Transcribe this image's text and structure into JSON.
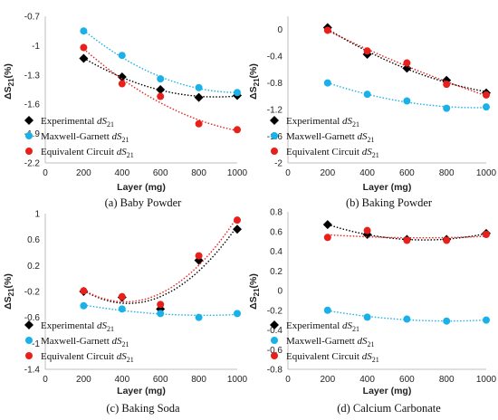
{
  "colors": {
    "experimental": "#000000",
    "maxwell_garnett": "#1ab0e8",
    "equivalent_circuit": "#e8201c",
    "axis": "#bfbfbf"
  },
  "chart_data": [
    {
      "type": "scatter",
      "caption": "(a) Baby Powder",
      "xlabel": "Layer (mg)",
      "ylabel_main": "ΔS",
      "ylabel_sub": "21",
      "ylabel_unit": "(%)",
      "xlim": [
        0,
        1000
      ],
      "ylim": [
        -2.2,
        -0.7
      ],
      "xticks": [
        "0",
        "200",
        "400",
        "600",
        "800",
        "1000"
      ],
      "yticks": [
        "-0.7",
        "-1",
        "-1.3",
        "-1.6",
        "-1.9",
        "-2.2"
      ],
      "ytick_values": [
        -0.7,
        -1,
        -1.3,
        -1.6,
        -1.9,
        -2.2
      ],
      "trendlines": "dotted",
      "legend_position": "bottom-left",
      "x": [
        200,
        400,
        600,
        800,
        1000
      ],
      "series": [
        {
          "name": "Experimental",
          "name_italic": "dS",
          "name_sub": "21",
          "marker": "diamond",
          "values": [
            -1.13,
            -1.32,
            -1.45,
            -1.53,
            -1.51
          ]
        },
        {
          "name": "Maxwell-Garnett",
          "name_italic": "dS",
          "name_sub": "21",
          "marker": "circle",
          "values": [
            -0.85,
            -1.1,
            -1.34,
            -1.43,
            -1.48
          ]
        },
        {
          "name": "Equivalent Circuit",
          "name_italic": "dS",
          "name_sub": "21",
          "marker": "circle",
          "values": [
            -1.02,
            -1.39,
            -1.52,
            -1.8,
            -1.86
          ]
        }
      ]
    },
    {
      "type": "scatter",
      "caption": "(b) Baking Powder",
      "xlabel": "Layer (mg)",
      "ylabel_main": "ΔS",
      "ylabel_sub": "21",
      "ylabel_unit": "(%)",
      "xlim": [
        0,
        1000
      ],
      "ylim": [
        -2,
        0.2
      ],
      "xticks": [
        "0",
        "200",
        "400",
        "600",
        "800",
        "1000"
      ],
      "yticks": [
        "0",
        "-0.4",
        "-0.8",
        "-1.2",
        "-1.6",
        "-2"
      ],
      "ytick_values": [
        0,
        -0.4,
        -0.8,
        -1.2,
        -1.6,
        -2
      ],
      "trendlines": "dotted",
      "legend_position": "bottom-left",
      "x": [
        200,
        400,
        600,
        800,
        1000
      ],
      "series": [
        {
          "name": "Experimental",
          "name_italic": "dS",
          "name_sub": "21",
          "marker": "diamond",
          "values": [
            0.03,
            -0.37,
            -0.58,
            -0.76,
            -0.95
          ]
        },
        {
          "name": "Maxwell-Garnett",
          "name_italic": "dS",
          "name_sub": "21",
          "marker": "circle",
          "values": [
            -0.8,
            -0.97,
            -1.07,
            -1.18,
            -1.16
          ]
        },
        {
          "name": "Equivalent Circuit",
          "name_italic": "dS",
          "name_sub": "21",
          "marker": "circle",
          "values": [
            -0.01,
            -0.32,
            -0.5,
            -0.82,
            -0.98
          ]
        }
      ]
    },
    {
      "type": "scatter",
      "caption": "(c) Baking Soda",
      "xlabel": "Layer (mg)",
      "ylabel_main": "ΔS",
      "ylabel_sub": "21",
      "ylabel_unit": "(%)",
      "xlim": [
        0,
        1000
      ],
      "ylim": [
        -1.4,
        1
      ],
      "xticks": [
        "0",
        "200",
        "400",
        "600",
        "800",
        "1000"
      ],
      "yticks": [
        "1",
        "0.6",
        "0.2",
        "-0.2",
        "-0.6",
        "-1",
        "-1.4"
      ],
      "ytick_values": [
        1,
        0.6,
        0.2,
        -0.2,
        -0.6,
        -1,
        -1.4
      ],
      "trendlines": "dotted",
      "legend_position": "bottom-left",
      "x": [
        200,
        400,
        600,
        800,
        1000
      ],
      "series": [
        {
          "name": "Experimental",
          "name_italic": "dS",
          "name_sub": "21",
          "marker": "diamond",
          "values": [
            -0.2,
            -0.29,
            -0.47,
            0.28,
            0.76
          ]
        },
        {
          "name": "Maxwell-Garnett",
          "name_italic": "dS",
          "name_sub": "21",
          "marker": "circle",
          "values": [
            -0.42,
            -0.47,
            -0.54,
            -0.6,
            -0.54
          ]
        },
        {
          "name": "Equivalent Circuit",
          "name_italic": "dS",
          "name_sub": "21",
          "marker": "circle",
          "values": [
            -0.19,
            -0.28,
            -0.4,
            0.35,
            0.9
          ]
        }
      ]
    },
    {
      "type": "scatter",
      "caption": "(d) Calcium Carbonate",
      "xlabel": "Layer (mg)",
      "ylabel_main": "ΔS",
      "ylabel_sub": "21",
      "ylabel_unit": "(%)",
      "xlim": [
        0,
        1000
      ],
      "ylim": [
        -0.8,
        0.8
      ],
      "xticks": [
        "0",
        "200",
        "400",
        "600",
        "800",
        "1000"
      ],
      "yticks": [
        "0.8",
        "0.6",
        "0.4",
        "0.2",
        "0",
        "-0.2",
        "-0.4",
        "-0.6",
        "-0.8"
      ],
      "ytick_values": [
        0.8,
        0.6,
        0.4,
        0.2,
        0,
        -0.2,
        -0.4,
        -0.6,
        -0.8
      ],
      "trendlines": "dotted",
      "legend_position": "bottom-left",
      "x": [
        200,
        400,
        600,
        800,
        1000
      ],
      "series": [
        {
          "name": "Experimental",
          "name_italic": "dS",
          "name_sub": "21",
          "marker": "diamond",
          "values": [
            0.67,
            0.57,
            0.52,
            0.52,
            0.58
          ]
        },
        {
          "name": "Maxwell-Garnett",
          "name_italic": "dS",
          "name_sub": "21",
          "marker": "circle",
          "values": [
            -0.2,
            -0.27,
            -0.29,
            -0.31,
            -0.3
          ]
        },
        {
          "name": "Equivalent Circuit",
          "name_italic": "dS",
          "name_sub": "21",
          "marker": "circle",
          "values": [
            0.54,
            0.61,
            0.51,
            0.51,
            0.57
          ]
        }
      ]
    }
  ]
}
